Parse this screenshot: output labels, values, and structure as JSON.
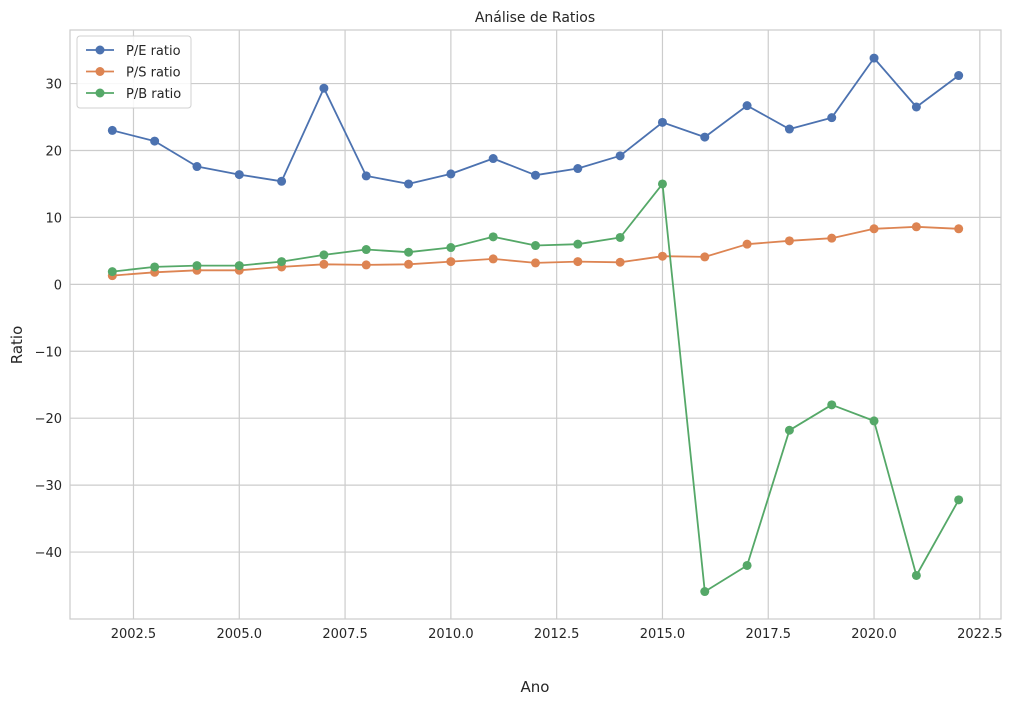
{
  "chart_data": {
    "type": "line",
    "title": "Análise de Ratios",
    "xlabel": "Ano",
    "ylabel": "Ratio",
    "xlim": [
      2001.0,
      2023.0
    ],
    "ylim": [
      -50,
      38
    ],
    "xticks": [
      2002.5,
      2005.0,
      2007.5,
      2010.0,
      2012.5,
      2015.0,
      2017.5,
      2020.0,
      2022.5
    ],
    "xtick_labels": [
      "2002.5",
      "2005.0",
      "2007.5",
      "2010.0",
      "2012.5",
      "2015.0",
      "2017.5",
      "2020.0",
      "2022.5"
    ],
    "yticks": [
      -40,
      -30,
      -20,
      -10,
      0,
      10,
      20,
      30
    ],
    "ytick_labels": [
      "−40",
      "−30",
      "−20",
      "−10",
      "0",
      "10",
      "20",
      "30"
    ],
    "grid": true,
    "legend_position": "top-left",
    "x": [
      2002,
      2003,
      2004,
      2005,
      2006,
      2007,
      2008,
      2009,
      2010,
      2011,
      2012,
      2013,
      2014,
      2015,
      2016,
      2017,
      2018,
      2019,
      2020,
      2021,
      2022
    ],
    "series": [
      {
        "name": "P/E ratio",
        "color": "#4c72b0",
        "values": [
          23.0,
          21.4,
          17.6,
          16.4,
          15.4,
          29.3,
          16.2,
          15.0,
          16.5,
          18.8,
          16.3,
          17.3,
          19.2,
          24.2,
          22.0,
          26.7,
          23.2,
          24.9,
          33.8,
          26.5,
          31.2
        ]
      },
      {
        "name": "P/S ratio",
        "color": "#dd8452",
        "values": [
          1.3,
          1.8,
          2.1,
          2.1,
          2.6,
          3.0,
          2.9,
          3.0,
          3.4,
          3.8,
          3.2,
          3.4,
          3.3,
          4.2,
          4.1,
          6.0,
          6.5,
          6.9,
          8.3,
          8.6,
          8.3
        ]
      },
      {
        "name": "P/B ratio",
        "color": "#55a868",
        "values": [
          1.9,
          2.6,
          2.8,
          2.8,
          3.4,
          4.4,
          5.2,
          4.8,
          5.5,
          7.1,
          5.8,
          6.0,
          7.0,
          15.0,
          -45.9,
          -42.0,
          -21.8,
          -18.0,
          -20.4,
          -43.5,
          -32.2
        ]
      }
    ]
  }
}
